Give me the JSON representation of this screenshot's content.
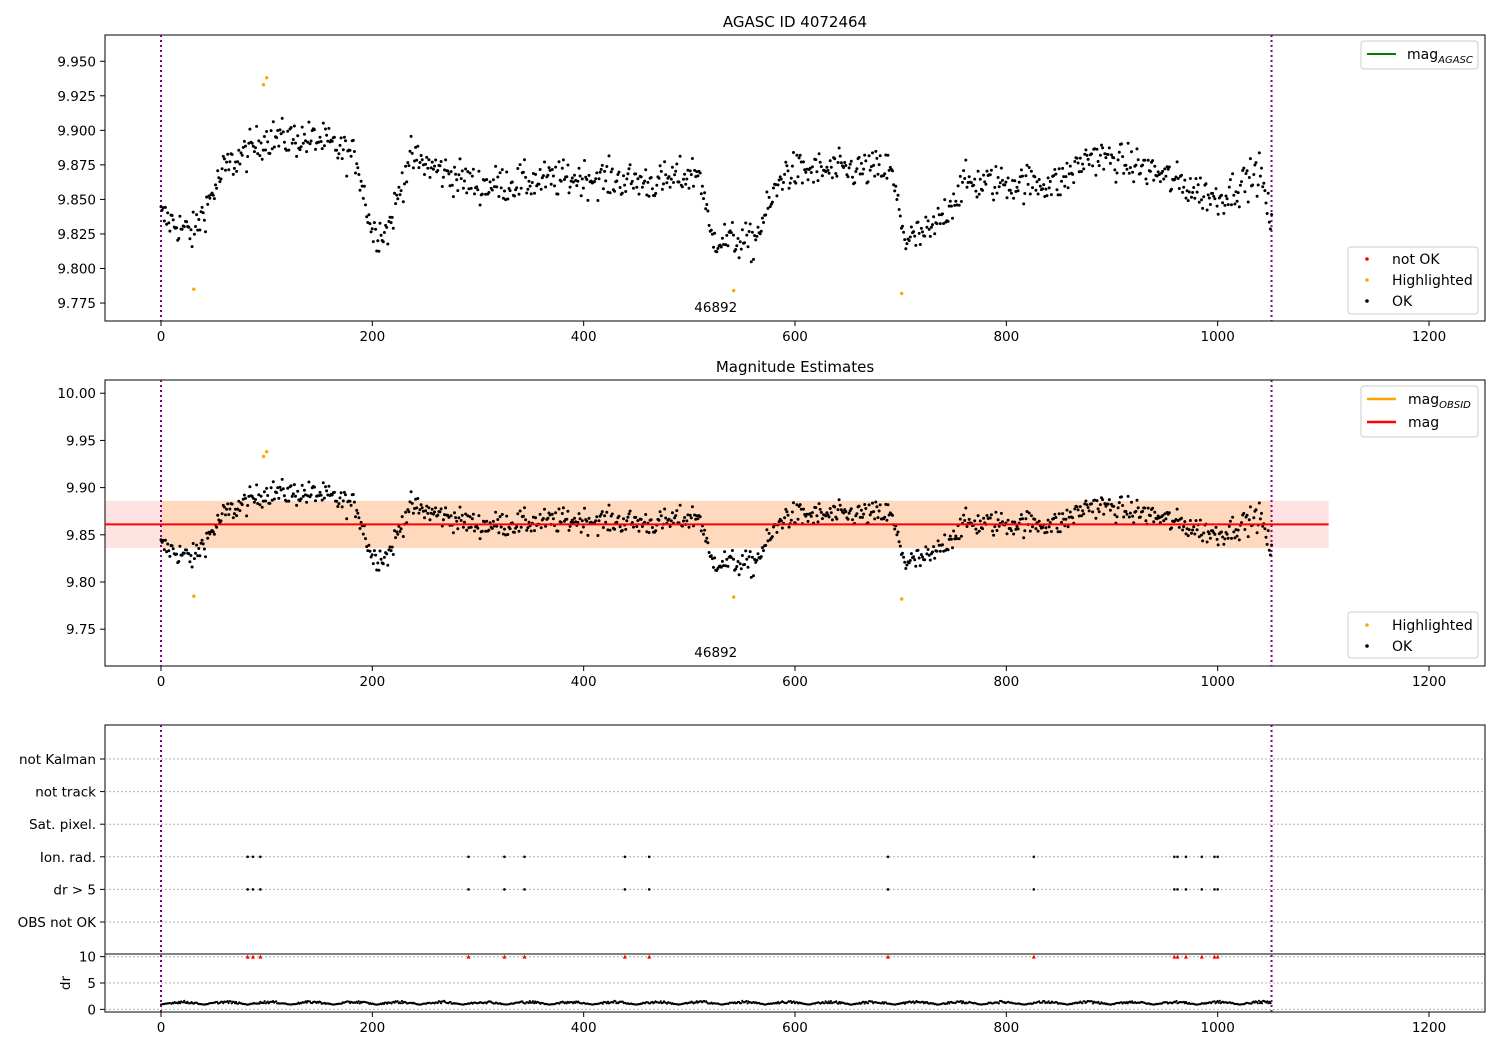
{
  "chart_data": [
    {
      "type": "scatter",
      "title": "AGASC ID 4072464",
      "annotation": "46892",
      "xlim": [
        -53,
        1253
      ],
      "ylim": [
        9.762,
        9.969
      ],
      "xticks": [
        0,
        200,
        400,
        600,
        800,
        1000,
        1200
      ],
      "yticks": [
        9.775,
        9.8,
        9.825,
        9.85,
        9.875,
        9.9,
        9.925,
        9.95
      ],
      "ytick_labels": [
        "9.775",
        "9.800",
        "9.825",
        "9.850",
        "9.875",
        "9.900",
        "9.925",
        "9.950"
      ],
      "vlines": [
        0,
        1051
      ],
      "legend_line": {
        "label": "mag",
        "subscript": "AGASC",
        "color": "#008000",
        "placement": "top-right"
      },
      "legend_points": {
        "placement": "bottom-right",
        "entries": [
          {
            "label": "not OK",
            "color": "#ff0000"
          },
          {
            "label": "Highlighted",
            "color": "#ffa500"
          },
          {
            "label": "OK",
            "color": "#000000"
          }
        ]
      },
      "highlighted": [
        [
          97,
          9.933
        ],
        [
          100,
          9.938
        ],
        [
          31,
          9.785
        ],
        [
          542,
          9.784
        ],
        [
          701,
          9.782
        ]
      ],
      "series": [
        {
          "name": "OK",
          "x0": 0,
          "x1": 1051,
          "n": 1000
        }
      ]
    },
    {
      "type": "scatter",
      "title": "Magnitude Estimates",
      "annotation": "46892",
      "xlim": [
        -53,
        1253
      ],
      "ylim": [
        9.711,
        10.014
      ],
      "xticks": [
        0,
        200,
        400,
        600,
        800,
        1000,
        1200
      ],
      "yticks": [
        9.75,
        9.8,
        9.85,
        9.9,
        9.95,
        10.0
      ],
      "ytick_labels": [
        "9.75",
        "9.80",
        "9.85",
        "9.90",
        "9.95",
        "10.00"
      ],
      "vlines": [
        0,
        1051
      ],
      "mag": 9.861,
      "mag_band": [
        9.836,
        9.886
      ],
      "mag_obsid_band": [
        9.836,
        9.886
      ],
      "band_x": [
        -53,
        1105
      ],
      "obsid_band_x": [
        0,
        1051
      ],
      "legend_lines": {
        "placement": "top-right",
        "entries": [
          {
            "label": "mag",
            "subscript": "OBSID",
            "color": "#ffa500"
          },
          {
            "label": "mag",
            "color": "#ff0000"
          }
        ]
      },
      "legend_points": {
        "placement": "bottom-right",
        "entries": [
          {
            "label": "Highlighted",
            "color": "#ffa500"
          },
          {
            "label": "OK",
            "color": "#000000"
          }
        ]
      },
      "highlighted": [
        [
          97,
          9.933
        ],
        [
          100,
          9.938
        ],
        [
          31,
          9.785
        ],
        [
          542,
          9.784
        ],
        [
          701,
          9.782
        ]
      ]
    },
    {
      "type": "scatter",
      "xlim": [
        -53,
        1253
      ],
      "xticks": [
        0,
        200,
        400,
        600,
        800,
        1000,
        1200
      ],
      "vlines": [
        0,
        1051
      ],
      "flag_rows": [
        "not Kalman",
        "not track",
        "Sat. pixel.",
        "Ion. rad.",
        "dr > 5",
        "OBS not OK"
      ],
      "flag_events": [
        82,
        87,
        94,
        291,
        325,
        344,
        439,
        462,
        688,
        826,
        959,
        962,
        970,
        985,
        997,
        1000
      ],
      "flagged_rows": [
        "Ion. rad.",
        "dr > 5"
      ],
      "dr_ylabel": "dr",
      "dr_ylim": [
        -0.5,
        10.5
      ],
      "dr_yticks": [
        0,
        5,
        10
      ],
      "dr_clip_value": 10
    }
  ]
}
